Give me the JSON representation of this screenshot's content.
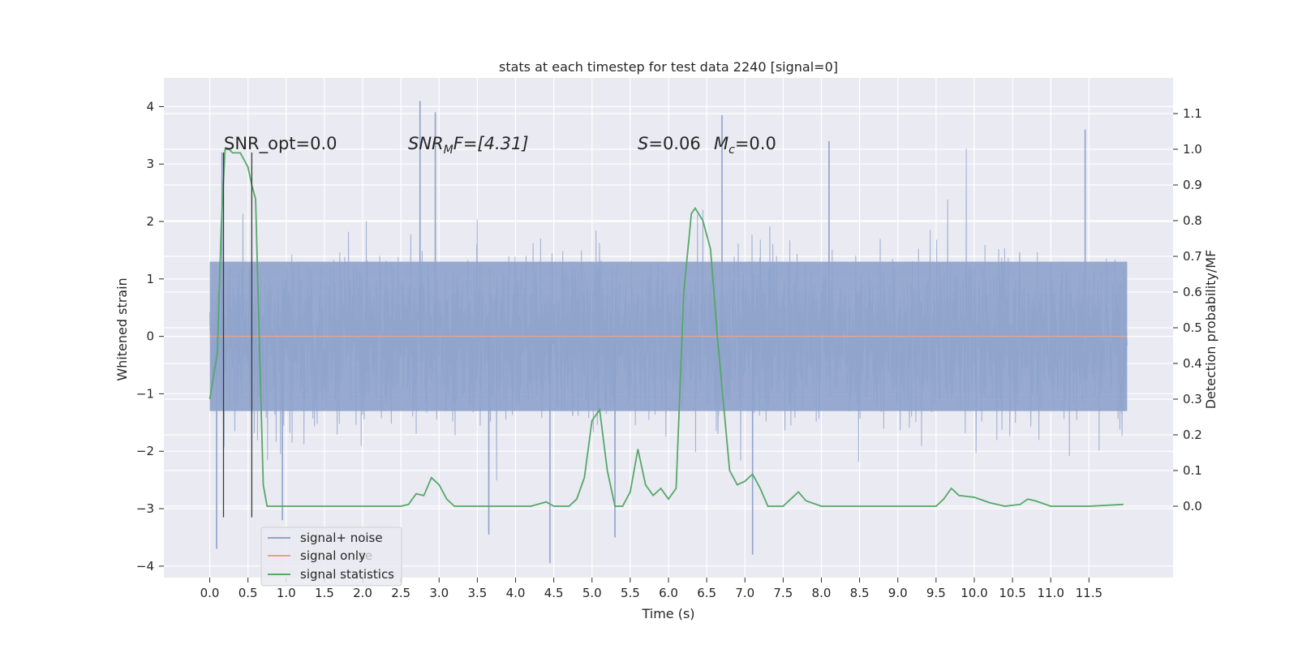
{
  "chart_data": {
    "type": "line",
    "title": "stats at each timestep for test data 2240 [signal=0]",
    "xlabel": "Time (s)",
    "ylabel": "Whitened strain",
    "ylabel_right": "Detection probability/MF",
    "xlim": [
      -0.6,
      12.6
    ],
    "ylim": [
      -4.2,
      4.5
    ],
    "ylim_right": [
      -0.2,
      1.2
    ],
    "x_ticks": [
      "0.0",
      "0.5",
      "1.0",
      "1.5",
      "2.0",
      "2.5",
      "3.0",
      "3.5",
      "4.0",
      "4.5",
      "5.0",
      "5.5",
      "6.0",
      "6.5",
      "7.0",
      "7.5",
      "8.0",
      "8.5",
      "9.0",
      "9.5",
      "10.0",
      "10.5",
      "11.0",
      "11.5"
    ],
    "y_ticks_left": [
      "4",
      "3",
      "2",
      "1",
      "0",
      "−1",
      "−2",
      "−3",
      "−4"
    ],
    "y_ticks_right": [
      "1.1",
      "1.0",
      "0.9",
      "0.8",
      "0.7",
      "0.6",
      "0.5",
      "0.4",
      "0.3",
      "0.2",
      "0.1",
      "0.0"
    ],
    "annotations": {
      "snr_opt": "SNR_opt=0.0",
      "snr_mf_base": "SNR",
      "snr_mf_sub": "M",
      "snr_mf_rest": "F=[4.31]",
      "s_var": "S",
      "s_val": "=0.06",
      "mc_var": "M",
      "mc_sub": "c",
      "mc_val": "=0.0"
    },
    "vertical_lines_x": [
      0.18,
      0.55
    ],
    "series": [
      {
        "name": "signal+ noise",
        "color": "#8ea2cb",
        "axis": "left",
        "x_range": [
          0.0,
          12.0
        ],
        "core_band": [
          -1.3,
          1.3
        ],
        "envelope": [
          -2.3,
          2.3
        ],
        "peak_values": [
          {
            "x": 0.09,
            "y": -3.7
          },
          {
            "x": 0.16,
            "y": 3.2
          },
          {
            "x": 2.75,
            "y": 4.1
          },
          {
            "x": 2.95,
            "y": 3.9
          },
          {
            "x": 4.45,
            "y": -3.95
          },
          {
            "x": 6.7,
            "y": 3.85
          },
          {
            "x": 7.1,
            "y": -3.8
          },
          {
            "x": 11.45,
            "y": 3.6
          },
          {
            "x": 0.95,
            "y": -3.2
          },
          {
            "x": 3.65,
            "y": -3.45
          },
          {
            "x": 5.3,
            "y": -3.5
          },
          {
            "x": 8.1,
            "y": 3.4
          }
        ]
      },
      {
        "name": "signal only",
        "color": "#e0a58f",
        "axis": "left",
        "x": [
          0.0,
          12.0
        ],
        "y": [
          0.0,
          0.0
        ]
      },
      {
        "name": "signal statistics",
        "color": "#55a868",
        "axis": "right",
        "x": [
          0.0,
          0.1,
          0.15,
          0.2,
          0.25,
          0.3,
          0.4,
          0.45,
          0.5,
          0.55,
          0.6,
          0.65,
          0.7,
          0.75,
          0.8,
          1.0,
          2.0,
          2.5,
          2.6,
          2.7,
          2.8,
          2.9,
          3.0,
          3.1,
          3.2,
          3.3,
          3.5,
          4.0,
          4.2,
          4.4,
          4.5,
          4.7,
          4.8,
          4.9,
          5.0,
          5.1,
          5.2,
          5.3,
          5.4,
          5.5,
          5.6,
          5.7,
          5.8,
          5.9,
          6.0,
          6.1,
          6.2,
          6.3,
          6.35,
          6.45,
          6.55,
          6.65,
          6.8,
          6.9,
          7.0,
          7.1,
          7.2,
          7.3,
          7.5,
          7.6,
          7.7,
          7.8,
          8.0,
          9.0,
          9.5,
          9.6,
          9.7,
          9.8,
          10.0,
          10.2,
          10.4,
          10.6,
          10.7,
          10.8,
          11.0,
          11.5,
          11.95
        ],
        "y": [
          0.3,
          0.43,
          0.78,
          1.0,
          1.0,
          0.99,
          0.99,
          0.97,
          0.95,
          0.9,
          0.86,
          0.45,
          0.06,
          0.0,
          0.0,
          0.0,
          0.0,
          0.0,
          0.005,
          0.035,
          0.03,
          0.08,
          0.06,
          0.02,
          0.0,
          0.0,
          0.0,
          0.0,
          0.0,
          0.012,
          0.0,
          0.0,
          0.02,
          0.08,
          0.24,
          0.27,
          0.1,
          0.0,
          0.0,
          0.04,
          0.16,
          0.06,
          0.03,
          0.05,
          0.02,
          0.05,
          0.6,
          0.82,
          0.835,
          0.8,
          0.72,
          0.45,
          0.1,
          0.06,
          0.07,
          0.09,
          0.05,
          0.0,
          0.0,
          0.02,
          0.04,
          0.015,
          0.0,
          0.0,
          0.0,
          0.02,
          0.05,
          0.03,
          0.025,
          0.01,
          0.0,
          0.005,
          0.02,
          0.015,
          0.0,
          0.0,
          0.005
        ]
      }
    ],
    "legend": {
      "position": "lower-left",
      "items": [
        "signal+ noise",
        "signal only",
        "signal statistics"
      ],
      "ghost_text": "se"
    }
  }
}
